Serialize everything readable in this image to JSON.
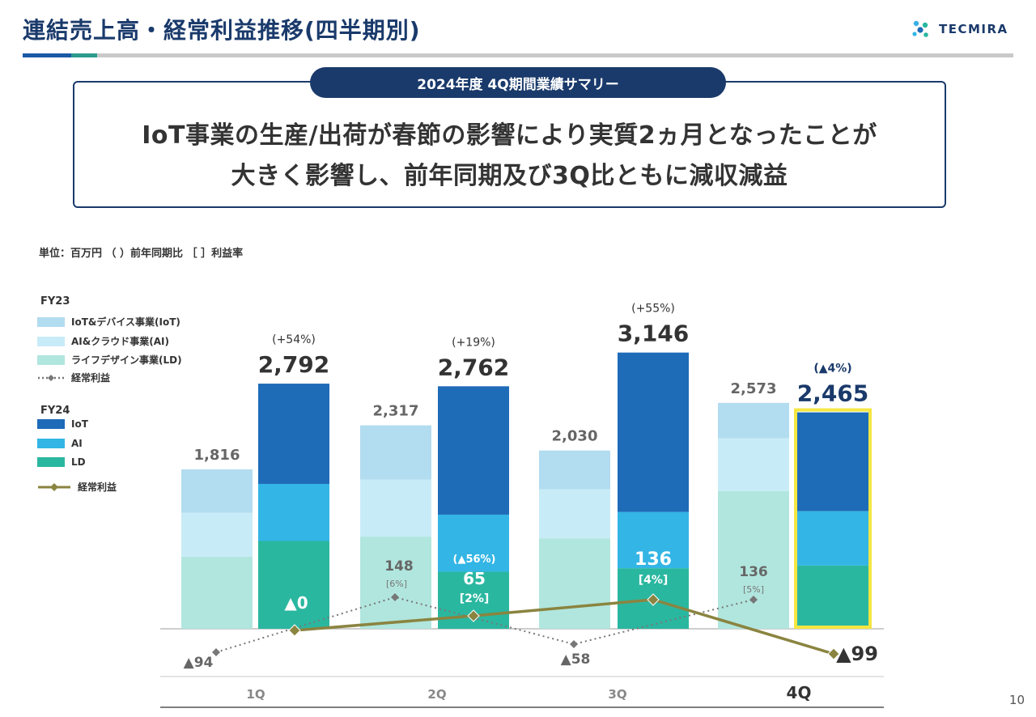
{
  "header": {
    "title": "連結売上高・経常利益推移(四半期別)",
    "logo_text": "TECMIRA"
  },
  "summary": {
    "pill_label": "2024年度 4Q期間業績サマリー",
    "line1": "IoT事業の生産/出荷が春節の影響により実質2ヵ月となったことが",
    "line2": "大きく影響し、前年同期及び3Q比ともに減収減益"
  },
  "unit_note": "単位：百万円 （ ）前年同期比 ［ ］利益率",
  "legend": {
    "fy23_title": "FY23",
    "fy23_items": [
      "IoT&デバイス事業(IoT)",
      "AI&クラウド事業(AI)",
      "ライフデザイン事業(LD)",
      "経常利益"
    ],
    "fy24_title": "FY24",
    "fy24_items": [
      "IoT",
      "AI",
      "LD",
      "経常利益"
    ]
  },
  "colors": {
    "fy23_iot": "#b2dcf0",
    "fy23_ai": "#c8ecf7",
    "fy23_ld": "#b1e6de",
    "fy24_iot": "#1e6bb8",
    "fy24_ai": "#33b5e5",
    "fy24_ld": "#2ab7a0",
    "fy23_profit": "#777777",
    "fy24_profit": "#8a8440",
    "highlight": "#f5e642",
    "navy": "#1a3a6b"
  },
  "chart_data": {
    "type": "bar",
    "categories": [
      "1Q",
      "2Q",
      "3Q",
      "4Q"
    ],
    "ylim": [
      -140,
      3200
    ],
    "fy23": {
      "totals": [
        1816,
        2317,
        2030,
        2573
      ],
      "total_labels": [
        "1,816",
        "2,317",
        "2,030",
        "2,573"
      ],
      "segments": {
        "LD": [
          820,
          1050,
          1030,
          1570
        ],
        "AI": [
          500,
          650,
          560,
          600
        ],
        "IoT": [
          496,
          617,
          440,
          403
        ]
      },
      "ordinary_profit": [
        -94,
        148,
        -58,
        136
      ],
      "profit_labels": [
        "▲94",
        "148",
        "▲58",
        "136"
      ],
      "margin_labels": [
        "",
        "[6%]",
        "",
        "[5%]"
      ]
    },
    "fy24": {
      "totals": [
        2792,
        2762,
        3146,
        2465
      ],
      "total_labels": [
        "2,792",
        "2,762",
        "3,146",
        "2,465"
      ],
      "yoy_labels": [
        "(+54%)",
        "(+19%)",
        "(+55%)",
        "(▲4%)"
      ],
      "segments": {
        "LD": [
          1000,
          650,
          690,
          720
        ],
        "AI": [
          650,
          650,
          640,
          620
        ],
        "IoT": [
          1142,
          1462,
          1816,
          1125
        ]
      },
      "ordinary_profit": [
        0,
        65,
        136,
        -99
      ],
      "profit_labels": [
        "▲0",
        "65",
        "136",
        "▲99"
      ],
      "profit_yoy_labels": [
        "",
        "(▲56%)",
        "",
        ""
      ],
      "margin_labels": [
        "",
        "[2%]",
        "[4%]",
        ""
      ]
    }
  },
  "page_number": "10"
}
